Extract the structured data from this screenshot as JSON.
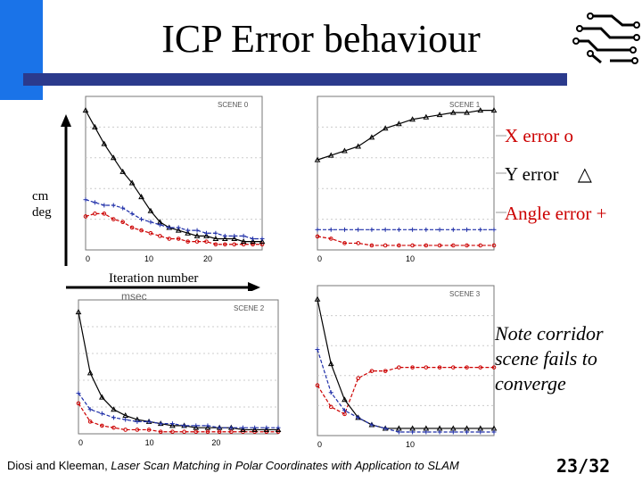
{
  "slide": {
    "title": "ICP Error behaviour",
    "legend": {
      "x_error": "X error o",
      "y_error": "Y error",
      "y_error_symbol": "△",
      "angle_error": "Angle error +"
    },
    "y_axis_label_1": "cm",
    "y_axis_label_2": "deg",
    "x_axis_label": "Iteration number",
    "x_axis_sublabel": "msec",
    "note": [
      "Note corridor",
      "scene fails to",
      "converge"
    ],
    "footer_authors": "Diosi and Kleeman, ",
    "footer_title": "Laser Scan Matching in Polar Coordinates with Application to SLAM",
    "page_number": "23/32"
  },
  "chart_data": [
    {
      "type": "line",
      "panel": "top-left",
      "scene_label": "SCENE 0",
      "x_ticks": [
        "0",
        "10",
        "20"
      ],
      "series": [
        {
          "name": "X error o",
          "color": "#cc0000",
          "values": [
            12,
            13,
            13,
            11,
            10,
            8,
            7,
            6,
            5,
            4,
            4,
            3,
            3,
            3,
            2,
            2,
            2,
            2,
            2,
            2
          ]
        },
        {
          "name": "Y error",
          "color": "#000000",
          "values": [
            50,
            44,
            38,
            33,
            28,
            24,
            19,
            14,
            10,
            8,
            7,
            6,
            5,
            5,
            4,
            4,
            4,
            3,
            3,
            3
          ]
        },
        {
          "name": "Angle error +",
          "color": "#1f2fa8",
          "values": [
            18,
            17,
            16,
            16,
            15,
            13,
            11,
            10,
            9,
            8,
            8,
            7,
            7,
            6,
            6,
            5,
            5,
            5,
            4,
            4
          ]
        }
      ]
    },
    {
      "type": "line",
      "panel": "top-right",
      "scene_label": "SCENE 1",
      "x_ticks": [
        "0",
        "10"
      ],
      "series": [
        {
          "name": "X error o",
          "color": "#cc0000",
          "values": [
            6,
            5,
            3,
            3,
            2,
            2,
            2,
            2,
            2,
            2,
            2,
            2,
            2,
            2
          ]
        },
        {
          "name": "Y error",
          "color": "#000000",
          "values": [
            40,
            42,
            44,
            46,
            50,
            54,
            56,
            58,
            59,
            60,
            61,
            61,
            62,
            62
          ]
        },
        {
          "name": "Angle error +",
          "color": "#1f2fa8",
          "values": [
            9,
            9,
            9,
            9,
            9,
            9,
            9,
            9,
            9,
            9,
            9,
            9,
            9,
            9
          ]
        }
      ]
    },
    {
      "type": "line",
      "panel": "bottom-left",
      "scene_label": "SCENE 2",
      "x_ticks": [
        "0",
        "10",
        "20"
      ],
      "series": [
        {
          "name": "X error o",
          "color": "#cc0000",
          "values": [
            15,
            6,
            4,
            3,
            2,
            2,
            2,
            1,
            1,
            1,
            1,
            1,
            1,
            1,
            1,
            1,
            1,
            1
          ]
        },
        {
          "name": "Y error",
          "color": "#000000",
          "values": [
            60,
            30,
            18,
            12,
            9,
            7,
            6,
            5,
            4,
            4,
            3,
            3,
            3,
            3,
            2,
            2,
            2,
            2
          ]
        },
        {
          "name": "Angle error +",
          "color": "#1f2fa8",
          "values": [
            20,
            12,
            10,
            8,
            7,
            6,
            6,
            5,
            5,
            4,
            4,
            4,
            3,
            3,
            3,
            3,
            3,
            3
          ]
        }
      ]
    },
    {
      "type": "line",
      "panel": "bottom-right",
      "scene_label": "SCENE 3",
      "x_ticks": [
        "0",
        "10"
      ],
      "series": [
        {
          "name": "X error o",
          "color": "#cc0000",
          "values": [
            14,
            8,
            6,
            16,
            18,
            18,
            19,
            19,
            19,
            19,
            19,
            19,
            19,
            19
          ]
        },
        {
          "name": "Y error",
          "color": "#000000",
          "values": [
            38,
            20,
            10,
            5,
            3,
            2,
            2,
            2,
            2,
            2,
            2,
            2,
            2,
            2
          ]
        },
        {
          "name": "Angle error +",
          "color": "#1f2fa8",
          "values": [
            24,
            12,
            7,
            5,
            3,
            2,
            1,
            1,
            1,
            1,
            1,
            1,
            1,
            1
          ]
        }
      ]
    }
  ],
  "icons": {
    "logo": "circuit-logo-icon"
  }
}
